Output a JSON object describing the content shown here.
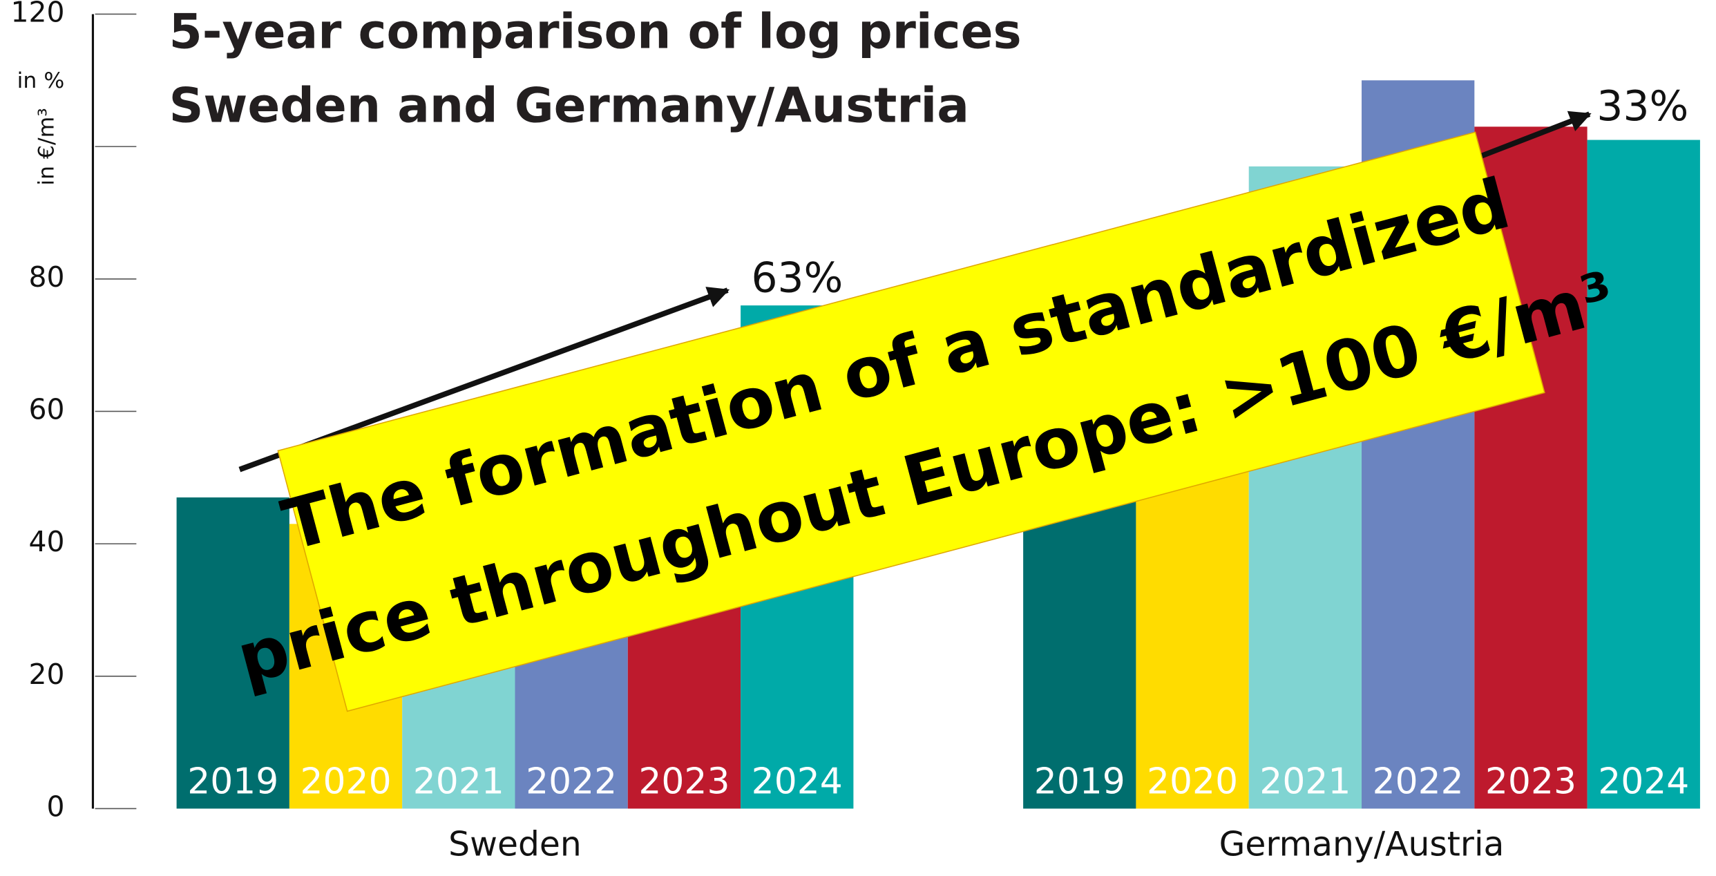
{
  "chart_data": {
    "type": "bar",
    "title": "5-year comparison of log prices",
    "subtitle": "Sweden and Germany/Austria",
    "y_label": "in €/m³",
    "y_label_secondary": "in %",
    "categories": [
      "Sweden",
      "Germany/Austria"
    ],
    "series": [
      {
        "name": "2019",
        "color": "#006e6e",
        "values": [
          47,
          76
        ]
      },
      {
        "name": "2020",
        "color": "#ffdc00",
        "values": [
          43,
          80
        ]
      },
      {
        "name": "2021",
        "color": "#80d4d2",
        "values": [
          50,
          97
        ]
      },
      {
        "name": "2022",
        "color": "#6b84c0",
        "values": [
          55,
          110
        ]
      },
      {
        "name": "2023",
        "color": "#be1a2d",
        "values": [
          65,
          103
        ]
      },
      {
        "name": "2024",
        "color": "#00aaa8",
        "values": [
          76,
          101
        ]
      }
    ],
    "ylim": [
      0,
      120
    ],
    "yticks": [
      0,
      20,
      40,
      60,
      80,
      120
    ],
    "unlabeled_yticks": [
      100
    ],
    "annotations": [
      "63%",
      "33%"
    ],
    "banner": [
      "The formation of a standardized",
      "price throughout Europe: >100 €/m³"
    ],
    "banner_color": "#ffff00"
  }
}
